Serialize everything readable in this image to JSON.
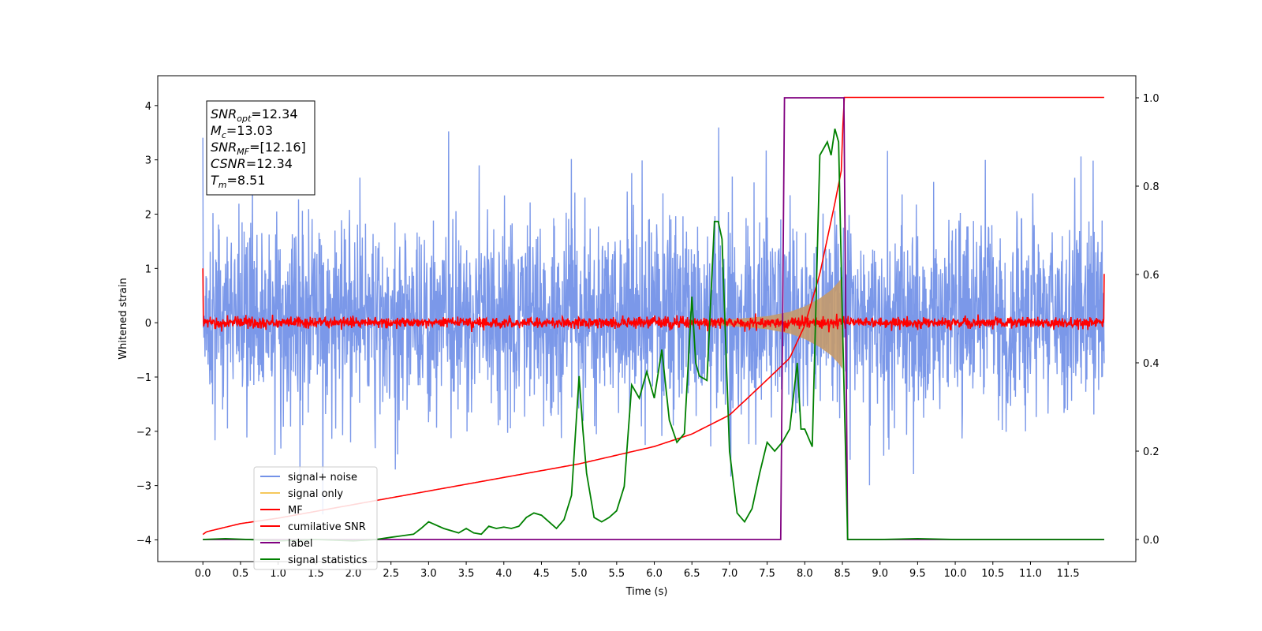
{
  "chart_data": {
    "type": "line",
    "title": "",
    "xlabel": "Time (s)",
    "ylabel": "Whitened strain",
    "xlim": [
      -0.6,
      12.4
    ],
    "ylim": [
      -4.4,
      4.55
    ],
    "y2lim": [
      -0.05,
      1.05
    ],
    "grid": false,
    "legend_location": "lower-left",
    "x_ticks": [
      "0.0",
      "0.5",
      "1.0",
      "1.5",
      "2.0",
      "2.5",
      "3.0",
      "3.5",
      "4.0",
      "4.5",
      "5.0",
      "5.5",
      "6.0",
      "6.5",
      "7.0",
      "7.5",
      "8.0",
      "8.5",
      "9.0",
      "9.5",
      "10.0",
      "10.5",
      "11.0",
      "11.5"
    ],
    "y_ticks": [
      "4",
      "3",
      "2",
      "1",
      "0",
      "−1",
      "−2",
      "−3",
      "−4"
    ],
    "y2_ticks": [
      "1.0",
      "0.8",
      "0.6",
      "0.4",
      "0.2",
      "0.0"
    ],
    "annotation_lines": [
      {
        "base": "SNR",
        "sub": "opt",
        "rest": "=12.34"
      },
      {
        "base": "M",
        "sub": "c",
        "rest": "=13.03"
      },
      {
        "base": "SNR",
        "sub": "MF",
        "rest": "=[12.16]"
      },
      {
        "base": "CSNR",
        "sub": "",
        "rest": "=12.34"
      },
      {
        "base": "T",
        "sub": "m",
        "rest": "=8.51"
      }
    ],
    "series": [
      {
        "name": "signal+ noise",
        "color": "#7492e8",
        "axis": "left",
        "style": "noise band, approx. range -3.0 to 3.6 across 0-12 s",
        "typical_range": [
          -2.0,
          2.3
        ]
      },
      {
        "name": "signal only",
        "color": "#f5c85c",
        "axis": "left",
        "style": "chirp envelope growing from ~6.5 s to peak at ~8.5 s",
        "x": [
          6.5,
          7.0,
          7.5,
          7.8,
          8.0,
          8.2,
          8.35,
          8.45,
          8.5
        ],
        "amplitude": [
          0.02,
          0.06,
          0.12,
          0.2,
          0.3,
          0.45,
          0.6,
          0.75,
          0.85
        ]
      },
      {
        "name": "MF",
        "color": "#ff0000",
        "axis": "left",
        "style": "noise around zero",
        "typical_range": [
          -0.15,
          0.22
        ]
      },
      {
        "name": "cumilative SNR",
        "color": "#ff0000",
        "axis": "left",
        "x": [
          0.0,
          0.05,
          0.5,
          1.0,
          2.0,
          3.0,
          4.0,
          5.0,
          6.0,
          6.5,
          7.0,
          7.5,
          7.8,
          8.0,
          8.2,
          8.4,
          8.5,
          8.51,
          9.0,
          10.0,
          11.0,
          11.98
        ],
        "values": [
          -3.9,
          -3.85,
          -3.7,
          -3.6,
          -3.35,
          -3.1,
          -2.85,
          -2.6,
          -2.28,
          -2.05,
          -1.7,
          -1.05,
          -0.65,
          -0.05,
          0.9,
          2.2,
          2.9,
          4.15,
          4.15,
          4.15,
          4.15,
          4.15
        ]
      },
      {
        "name": "label",
        "color": "#800080",
        "axis": "right",
        "x": [
          0.0,
          7.68,
          7.73,
          8.52,
          8.57,
          11.98
        ],
        "values": [
          0.0,
          0.0,
          1.0,
          1.0,
          0.0,
          0.0
        ]
      },
      {
        "name": "signal statistics",
        "color": "#008000",
        "axis": "right",
        "x": [
          0.0,
          0.3,
          0.6,
          1.0,
          1.5,
          2.0,
          2.3,
          2.5,
          2.8,
          2.9,
          3.0,
          3.2,
          3.4,
          3.5,
          3.6,
          3.7,
          3.8,
          3.9,
          4.0,
          4.1,
          4.2,
          4.3,
          4.4,
          4.5,
          4.6,
          4.7,
          4.8,
          4.9,
          5.0,
          5.05,
          5.1,
          5.2,
          5.3,
          5.4,
          5.5,
          5.6,
          5.7,
          5.8,
          5.9,
          6.0,
          6.1,
          6.2,
          6.3,
          6.4,
          6.5,
          6.55,
          6.6,
          6.7,
          6.8,
          6.85,
          6.9,
          7.0,
          7.1,
          7.2,
          7.3,
          7.4,
          7.5,
          7.6,
          7.7,
          7.8,
          7.9,
          7.95,
          8.0,
          8.1,
          8.2,
          8.3,
          8.35,
          8.4,
          8.45,
          8.5,
          8.57,
          9.0,
          9.5,
          10.0,
          11.0,
          11.98
        ],
        "values": [
          0.0,
          0.002,
          0.0,
          -0.003,
          0.0,
          -0.003,
          0.0,
          0.005,
          0.012,
          0.025,
          0.04,
          0.025,
          0.015,
          0.025,
          0.015,
          0.012,
          0.03,
          0.025,
          0.028,
          0.025,
          0.03,
          0.05,
          0.06,
          0.055,
          0.04,
          0.025,
          0.045,
          0.1,
          0.37,
          0.25,
          0.15,
          0.05,
          0.04,
          0.05,
          0.065,
          0.12,
          0.35,
          0.32,
          0.38,
          0.32,
          0.43,
          0.27,
          0.22,
          0.24,
          0.55,
          0.4,
          0.37,
          0.36,
          0.72,
          0.72,
          0.68,
          0.2,
          0.06,
          0.04,
          0.07,
          0.15,
          0.22,
          0.2,
          0.22,
          0.25,
          0.4,
          0.25,
          0.25,
          0.21,
          0.87,
          0.9,
          0.87,
          0.93,
          0.9,
          0.5,
          0.0,
          0.0,
          0.002,
          0.0,
          0.0,
          0.0
        ]
      }
    ]
  }
}
